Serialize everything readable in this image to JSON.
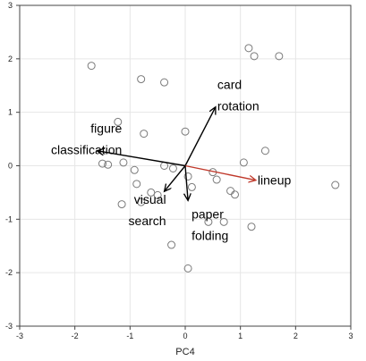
{
  "chart_data": {
    "type": "scatter",
    "title": "",
    "xlabel": "PC4",
    "ylabel": "",
    "xlim": [
      -3,
      3
    ],
    "ylim": [
      -3,
      3
    ],
    "x_ticks": [
      -3,
      -2,
      -1,
      0,
      1,
      2,
      3
    ],
    "y_ticks": [
      -3,
      -2,
      -1,
      0,
      1,
      2,
      3
    ],
    "grid": true,
    "colors": {
      "background": "#ffffff",
      "grid": "#e6e6e6",
      "point_stroke": "#7a7a7a",
      "vector_default": "#000000",
      "vector_highlight": "#c0392b"
    },
    "points": [
      [
        1.15,
        2.2
      ],
      [
        1.25,
        2.05
      ],
      [
        1.7,
        2.05
      ],
      [
        -1.7,
        1.87
      ],
      [
        -0.8,
        1.62
      ],
      [
        -0.38,
        1.56
      ],
      [
        -1.22,
        0.82
      ],
      [
        -0.75,
        0.6
      ],
      [
        0.0,
        0.64
      ],
      [
        1.45,
        0.28
      ],
      [
        1.06,
        0.06
      ],
      [
        2.72,
        -0.36
      ],
      [
        -1.5,
        0.04
      ],
      [
        -1.4,
        0.02
      ],
      [
        -1.12,
        0.06
      ],
      [
        -0.92,
        -0.08
      ],
      [
        -0.38,
        0.0
      ],
      [
        -0.22,
        -0.05
      ],
      [
        0.05,
        -0.2
      ],
      [
        0.12,
        -0.4
      ],
      [
        0.5,
        -0.12
      ],
      [
        0.57,
        -0.26
      ],
      [
        -0.88,
        -0.34
      ],
      [
        -0.62,
        -0.5
      ],
      [
        -0.5,
        -0.55
      ],
      [
        -0.8,
        -0.68
      ],
      [
        -1.15,
        -0.72
      ],
      [
        0.82,
        -0.47
      ],
      [
        0.9,
        -0.54
      ],
      [
        0.7,
        -1.05
      ],
      [
        0.42,
        -1.05
      ],
      [
        1.2,
        -1.14
      ],
      [
        -0.25,
        -1.48
      ],
      [
        0.05,
        -1.92
      ]
    ],
    "vectors": [
      {
        "x": 0.55,
        "y": 1.1,
        "labels": [
          "card",
          "rotation"
        ],
        "highlight": false
      },
      {
        "x": -1.6,
        "y": 0.28,
        "labels": [
          "figure",
          "classification"
        ],
        "highlight": false
      },
      {
        "x": 1.28,
        "y": -0.27,
        "labels": [
          "lineup"
        ],
        "highlight": true
      },
      {
        "x": -0.38,
        "y": -0.48,
        "labels": [
          "visual",
          "search"
        ],
        "highlight": false
      },
      {
        "x": 0.05,
        "y": -0.65,
        "labels": [
          "paper",
          "folding"
        ],
        "highlight": false
      }
    ]
  }
}
